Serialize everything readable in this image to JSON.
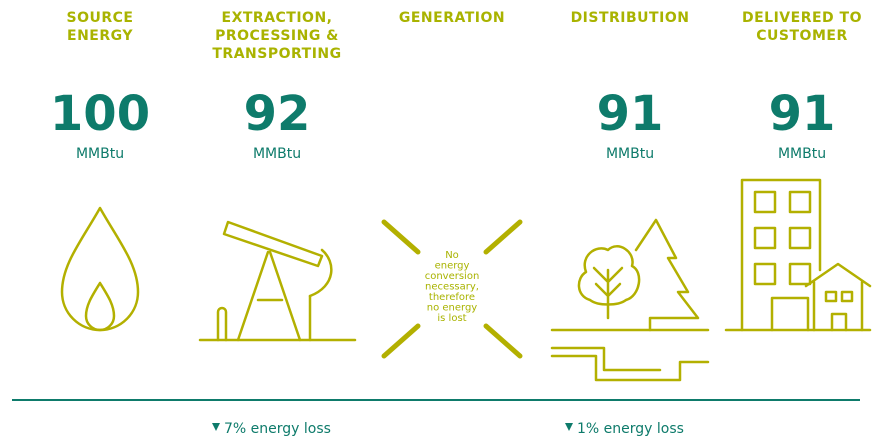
{
  "stages": [
    {
      "title_lines": [
        "SOURCE",
        "ENERGY"
      ],
      "value": 100,
      "unit": "MMBtu"
    },
    {
      "title_lines": [
        "EXTRACTION,",
        "PROCESSING &",
        "TRANSPORTING"
      ],
      "value": 92,
      "unit": "MMBtu"
    },
    {
      "title_lines": [
        "GENERATION"
      ],
      "note_lines": [
        "No",
        "energy",
        "conversion",
        "necessary,",
        "therefore",
        "no energy",
        "is lost"
      ]
    },
    {
      "title_lines": [
        "DISTRIBUTION"
      ],
      "value": 91,
      "unit": "MMBtu"
    },
    {
      "title_lines": [
        "DELIVERED TO",
        "CUSTOMER"
      ],
      "value": 91,
      "unit": "MMBtu"
    }
  ],
  "losses": [
    "7% energy loss",
    "1% energy loss"
  ]
}
